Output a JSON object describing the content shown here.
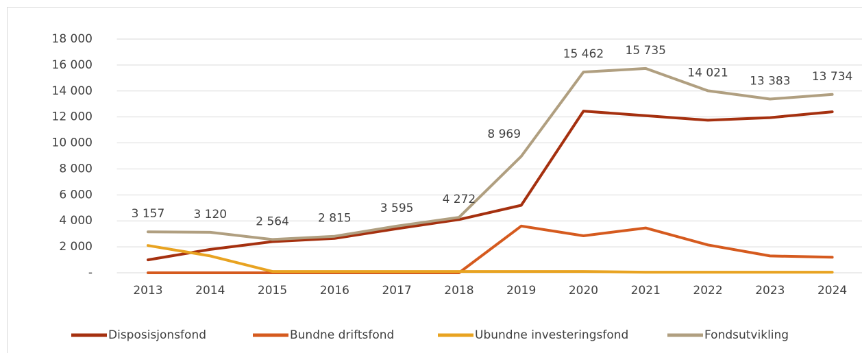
{
  "chart_data": {
    "type": "line",
    "categories": [
      "2013",
      "2014",
      "2015",
      "2016",
      "2017",
      "2018",
      "2019",
      "2020",
      "2021",
      "2022",
      "2023",
      "2024"
    ],
    "series": [
      {
        "name": "Disposisjonsfond",
        "color": "#a5300f",
        "values": [
          1000,
          1800,
          2400,
          2650,
          3400,
          4100,
          5200,
          12450,
          12100,
          11750,
          11950,
          12400
        ]
      },
      {
        "name": "Bundne driftsfond",
        "color": "#d55a1e",
        "values": [
          0,
          0,
          0,
          0,
          0,
          0,
          3600,
          2850,
          3450,
          2150,
          1300,
          1200
        ]
      },
      {
        "name": "Ubundne investeringsfond",
        "color": "#e8a321",
        "values": [
          2100,
          1300,
          100,
          100,
          100,
          100,
          100,
          100,
          50,
          50,
          50,
          50
        ]
      },
      {
        "name": "Fondsutvikling",
        "color": "#b09f80",
        "values": [
          3157,
          3120,
          2564,
          2815,
          3595,
          4272,
          8969,
          15462,
          15735,
          14021,
          13383,
          13734
        ],
        "value_labels": [
          "3 157",
          "3 120",
          "2 564",
          "2 815",
          "3 595",
          "4 272",
          "8 969",
          "15 462",
          "15 735",
          "14 021",
          "13 383",
          "13 734"
        ]
      }
    ],
    "ylim": [
      0,
      18000
    ],
    "yticks": [
      {
        "value": 0,
        "label": "-"
      },
      {
        "value": 2000,
        "label": "2 000"
      },
      {
        "value": 4000,
        "label": "4 000"
      },
      {
        "value": 6000,
        "label": "6 000"
      },
      {
        "value": 8000,
        "label": "8 000"
      },
      {
        "value": 10000,
        "label": "10 000"
      },
      {
        "value": 12000,
        "label": "12 000"
      },
      {
        "value": 14000,
        "label": "14 000"
      },
      {
        "value": 16000,
        "label": "16 000"
      },
      {
        "value": 18000,
        "label": "18 000"
      }
    ],
    "grid": true,
    "legend": "bottom"
  }
}
